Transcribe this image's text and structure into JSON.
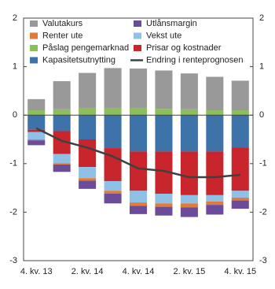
{
  "chart_data": {
    "type": "bar",
    "categories": [
      "4. kv. 13",
      null,
      "2. kv. 14",
      null,
      "4. kv. 14",
      null,
      "2. kv. 15",
      null,
      "4. kv. 15"
    ],
    "ylim": [
      -3,
      2
    ],
    "yticks": [
      -3,
      -2,
      -1,
      0,
      1,
      2
    ],
    "series": [
      {
        "name": "Kapasitetsutnytting",
        "color": "#3d73a8",
        "values": [
          -0.3,
          -0.33,
          -0.5,
          -0.68,
          -0.75,
          -0.75,
          -0.75,
          -0.75,
          -0.67
        ]
      },
      {
        "name": "Prisar og kostnader",
        "color": "#c8262c",
        "values": [
          -0.05,
          -0.47,
          -0.57,
          -0.68,
          -0.81,
          -0.87,
          -0.9,
          -0.9,
          -0.89
        ]
      },
      {
        "name": "Vekst ute",
        "color": "#8fc1e6",
        "values": [
          -0.15,
          -0.19,
          -0.23,
          -0.2,
          -0.24,
          -0.2,
          -0.17,
          -0.13,
          -0.14
        ]
      },
      {
        "name": "Renter ute",
        "color": "#e07b39",
        "values": [
          -0.02,
          -0.03,
          -0.05,
          -0.06,
          -0.07,
          -0.07,
          -0.08,
          -0.07,
          -0.06
        ]
      },
      {
        "name": "Utlånsmargin",
        "color": "#6b4c9a",
        "values": [
          -0.1,
          -0.15,
          -0.17,
          -0.2,
          -0.17,
          -0.18,
          -0.2,
          -0.2,
          -0.17
        ]
      },
      {
        "name": "Påslag pengemarknad",
        "color": "#8bbf5b",
        "values": [
          0.1,
          0.12,
          0.15,
          0.15,
          0.15,
          0.13,
          0.12,
          0.1,
          0.1
        ]
      },
      {
        "name": "Valutakurs",
        "color": "#999999",
        "values": [
          0.23,
          0.58,
          0.72,
          0.82,
          0.81,
          0.79,
          0.74,
          0.69,
          0.61
        ]
      },
      {
        "name": "Endring i renteprognosen",
        "type": "line",
        "color": "#404040",
        "values": [
          -0.27,
          -0.53,
          -0.67,
          -0.85,
          -1.1,
          -1.15,
          -1.28,
          -1.28,
          -1.23
        ]
      }
    ]
  }
}
